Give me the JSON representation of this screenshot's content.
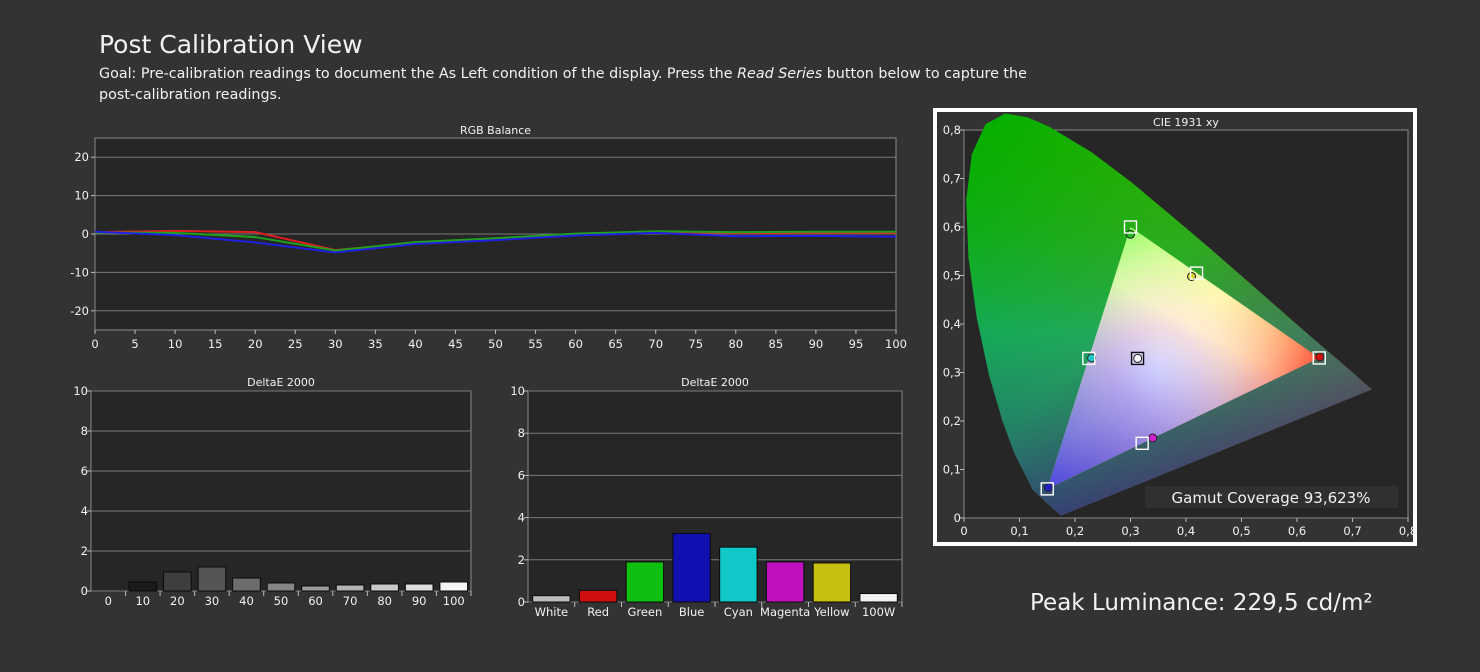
{
  "page": {
    "title": "Post Calibration View",
    "goal_before": "Goal: Pre-calibration readings to document the As Left condition of the display. Press the ",
    "goal_emph": "Read Series",
    "goal_after": " button below to capture the post-calibration readings.",
    "peak_luminance": "Peak Luminance: 229,5 cd/m²"
  },
  "chart_data": [
    {
      "id": "rgb",
      "type": "line",
      "title": "RGB Balance",
      "x": [
        0,
        10,
        20,
        30,
        40,
        50,
        60,
        70,
        80,
        90,
        100
      ],
      "xticks": [
        "0",
        "5",
        "10",
        "15",
        "20",
        "25",
        "30",
        "35",
        "40",
        "45",
        "50",
        "55",
        "60",
        "65",
        "70",
        "75",
        "80",
        "85",
        "90",
        "95",
        "100"
      ],
      "yticks": [
        "20",
        "10",
        "0",
        "-10",
        "-20"
      ],
      "xlim": [
        0,
        100
      ],
      "ylim": [
        -25,
        25
      ],
      "grid": true,
      "series": [
        {
          "color": "#e02020",
          "values": [
            0.5,
            0.8,
            0.5,
            -4.2,
            -2.3,
            -1.3,
            -0.2,
            0.5,
            0.3,
            0.3,
            0.3
          ]
        },
        {
          "color": "#1fa01f",
          "values": [
            0.4,
            0.3,
            -0.8,
            -4.3,
            -2.1,
            -1.1,
            0.1,
            0.7,
            0.5,
            0.6,
            0.6
          ]
        },
        {
          "color": "#2020e0",
          "values": [
            0.6,
            -0.3,
            -2.2,
            -4.8,
            -2.6,
            -1.6,
            -0.4,
            0.3,
            -0.6,
            -0.5,
            -0.7
          ]
        }
      ]
    },
    {
      "id": "grey",
      "type": "bar",
      "title": "DeltaE 2000",
      "categories": [
        "0",
        "10",
        "20",
        "30",
        "40",
        "50",
        "60",
        "70",
        "80",
        "90",
        "100"
      ],
      "values": [
        0,
        0.45,
        0.95,
        1.2,
        0.65,
        0.4,
        0.25,
        0.3,
        0.35,
        0.35,
        0.45
      ],
      "colors": [
        "#202020",
        "#1a1a1a",
        "#3e3e3e",
        "#555555",
        "#6c6c6c",
        "#848484",
        "#9b9b9b",
        "#b3b3b3",
        "#c9c9c9",
        "#dfdfdf",
        "#f5f5f5"
      ],
      "yticks": [
        "10",
        "8",
        "6",
        "4",
        "2",
        "0"
      ],
      "ylim": [
        0,
        10
      ],
      "grid": true
    },
    {
      "id": "colors",
      "type": "bar",
      "title": "DeltaE 2000",
      "categories": [
        "White",
        "Red",
        "Green",
        "Blue",
        "Cyan",
        "Magenta",
        "Yellow",
        "100W"
      ],
      "values": [
        0.3,
        0.55,
        1.9,
        3.25,
        2.6,
        1.9,
        1.85,
        0.4
      ],
      "colors": [
        "#bcbcbc",
        "#d01010",
        "#10c010",
        "#1010b0",
        "#10c8c8",
        "#c010c0",
        "#c8c010",
        "#f2f2f2"
      ],
      "yticks": [
        "10",
        "8",
        "6",
        "4",
        "2",
        "0"
      ],
      "ylim": [
        0,
        10
      ],
      "grid": true
    },
    {
      "id": "cie",
      "type": "scatter",
      "title": "CIE 1931 xy",
      "xticks": [
        "0",
        "0,1",
        "0,2",
        "0,3",
        "0,4",
        "0,5",
        "0,6",
        "0,7",
        "0,8"
      ],
      "yticks": [
        "0,8",
        "0,7",
        "0,6",
        "0,5",
        "0,4",
        "0,3",
        "0,2",
        "0,1",
        "0"
      ],
      "xlim": [
        0,
        0.8
      ],
      "ylim": [
        0,
        0.8
      ],
      "targets": [
        [
          0.64,
          0.33
        ],
        [
          0.3,
          0.6
        ],
        [
          0.15,
          0.06
        ],
        [
          0.225,
          0.329
        ],
        [
          0.321,
          0.154
        ],
        [
          0.419,
          0.505
        ],
        [
          0.3127,
          0.329
        ]
      ],
      "measured": [
        [
          0.641,
          0.332
        ],
        [
          0.3,
          0.585
        ],
        [
          0.152,
          0.063
        ],
        [
          0.23,
          0.33
        ],
        [
          0.34,
          0.165
        ],
        [
          0.41,
          0.498
        ],
        [
          0.313,
          0.329
        ]
      ],
      "measured_colors": [
        "#d01010",
        "#20c020",
        "#2020c0",
        "#20c8c8",
        "#d020d0",
        "#d8d020",
        "#ffffff"
      ],
      "gamut_coverage": "Gamut Coverage 93,623%"
    }
  ]
}
